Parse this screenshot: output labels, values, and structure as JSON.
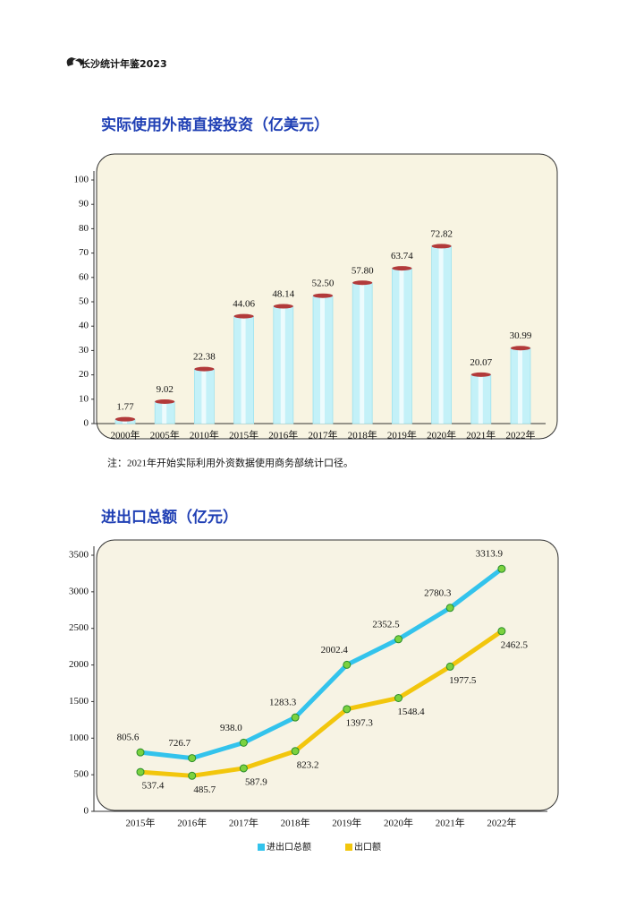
{
  "header": "长沙统计年鉴2023",
  "chart_data": [
    {
      "type": "bar",
      "title": "实际使用外商直接投资（亿美元）",
      "categories": [
        "2000年",
        "2005年",
        "2010年",
        "2015年",
        "2016年",
        "2017年",
        "2018年",
        "2019年",
        "2020年",
        "2021年",
        "2022年"
      ],
      "values": [
        1.77,
        9.02,
        22.38,
        44.06,
        48.14,
        52.5,
        57.8,
        63.74,
        72.82,
        20.07,
        30.99
      ],
      "value_labels": [
        "1.77",
        "9.02",
        "22.38",
        "44.06",
        "48.14",
        "52.50",
        "57.80",
        "63.74",
        "72.82",
        "20.07",
        "30.99"
      ],
      "color": "#c4f1f8",
      "ylim": [
        0,
        100
      ],
      "yticks": [
        0,
        10,
        20,
        30,
        40,
        50,
        60,
        70,
        80,
        90,
        100
      ],
      "note": "注：2021年开始实际利用外资数据使用商务部统计口径。"
    },
    {
      "type": "line",
      "title": "进出口总额（亿元）",
      "categories": [
        "2015年",
        "2016年",
        "2017年",
        "2018年",
        "2019年",
        "2020年",
        "2021年",
        "2022年"
      ],
      "series": [
        {
          "name": "进出口总额",
          "color": "#33c3ec",
          "values": [
            805.6,
            726.7,
            938.0,
            1283.3,
            2002.4,
            2352.5,
            2780.3,
            3313.9
          ],
          "value_labels": [
            "805.6",
            "726.7",
            "938.0",
            "1283.3",
            "2002.4",
            "2352.5",
            "2780.3",
            "3313.9"
          ]
        },
        {
          "name": "出口额",
          "color": "#f2c60d",
          "values": [
            537.4,
            485.7,
            587.9,
            823.2,
            1397.3,
            1548.4,
            1977.5,
            2462.5
          ],
          "value_labels": [
            "537.4",
            "485.7",
            "587.9",
            "823.2",
            "1397.3",
            "1548.4",
            "1977.5",
            "2462.5"
          ]
        }
      ],
      "ylim": [
        0,
        3500
      ],
      "yticks": [
        0,
        500,
        1000,
        1500,
        2000,
        2500,
        3000,
        3500
      ]
    }
  ]
}
